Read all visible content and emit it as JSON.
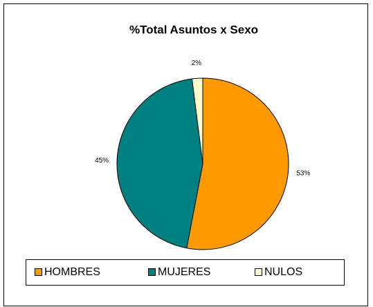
{
  "chart_data": {
    "type": "pie",
    "title": "%Total Asuntos x Sexo",
    "categories": [
      "HOMBRES",
      "MUJERES",
      "NULOS"
    ],
    "values": [
      53,
      45,
      2
    ],
    "value_labels": [
      "53%",
      "45%",
      "2%"
    ],
    "colors": [
      "#FF9900",
      "#008080",
      "#FFFFCC"
    ],
    "legend": "bottom"
  }
}
